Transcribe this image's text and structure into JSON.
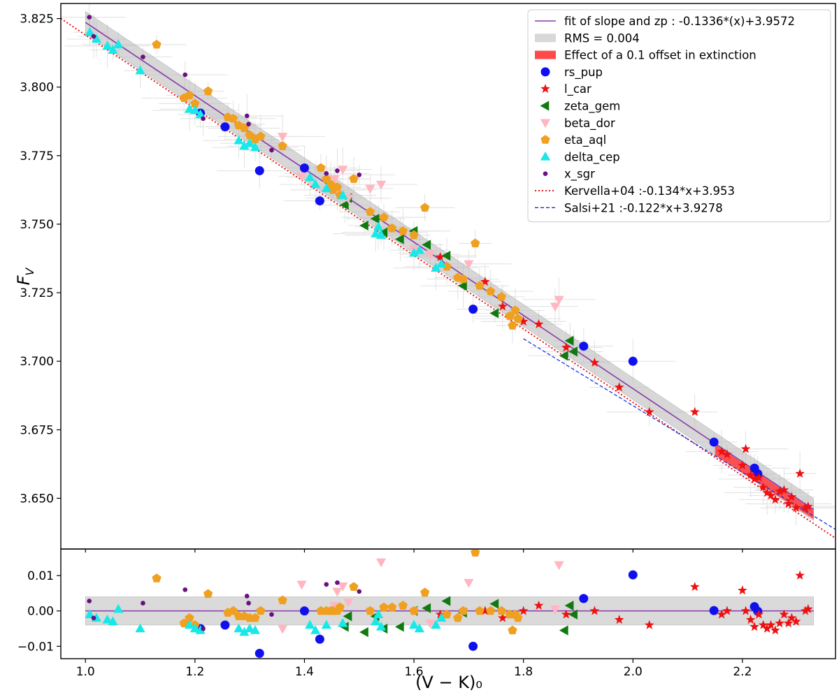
{
  "chart_data": [
    {
      "type": "scatter",
      "panel": "main",
      "ylabel_base": "F",
      "ylabel_sub": "V",
      "xlim": [
        0.955,
        2.37
      ],
      "ylim": [
        3.6315,
        3.8305
      ],
      "y_ticks": [
        {
          "value": 3.65,
          "label": "3.650"
        },
        {
          "value": 3.675,
          "label": "3.675"
        },
        {
          "value": 3.7,
          "label": "3.700"
        },
        {
          "value": 3.725,
          "label": "3.725"
        },
        {
          "value": 3.75,
          "label": "3.750"
        },
        {
          "value": 3.775,
          "label": "3.775"
        },
        {
          "value": 3.8,
          "label": "3.800"
        },
        {
          "value": 3.825,
          "label": "3.825"
        }
      ],
      "legend_position": "top-right",
      "fit": {
        "label": "fit of slope and zp : -0.1336*(x)+3.9572",
        "slope": -0.1336,
        "intercept": 3.9572,
        "x_range": [
          1.0,
          2.33
        ],
        "color": "#8b3aa8"
      },
      "rms_band": {
        "label": "RMS = 0.004",
        "width": 0.004,
        "x_range": [
          1.0,
          2.33
        ],
        "color": "#bdbdbd"
      },
      "extinction_band": {
        "label": "Effect of a 0.1 offset in extinction",
        "x_range": [
          2.15,
          2.33
        ],
        "color": "#ff4a4a"
      },
      "lines": [
        {
          "label": "Kervella+04 :-0.134*x+3.953",
          "slope": -0.134,
          "intercept": 3.953,
          "x_range": [
            0.955,
            2.37
          ],
          "color": "#ee1111",
          "style": "dotted"
        },
        {
          "label": "Salsi+21 :-0.122*x+3.9278",
          "slope": -0.122,
          "intercept": 3.9278,
          "x_range": [
            1.8,
            2.37
          ],
          "color": "#1530e0",
          "style": "dashed"
        }
      ],
      "series": [
        {
          "name": "rs_pup",
          "marker": "circle",
          "color": "#1010ee",
          "x": [
            1.21,
            1.255,
            1.318,
            1.4,
            1.428,
            1.708,
            1.91,
            2.0,
            2.148,
            2.222,
            2.228
          ],
          "y": [
            3.7905,
            3.7855,
            3.7695,
            3.7705,
            3.7585,
            3.719,
            3.7055,
            3.7,
            3.6705,
            3.661,
            3.659
          ]
        },
        {
          "name": "l_car",
          "marker": "star",
          "color": "#ee1111",
          "x": [
            1.648,
            1.73,
            1.762,
            1.8,
            1.828,
            1.878,
            1.93,
            1.975,
            2.03,
            2.113,
            2.162,
            2.172,
            2.2,
            2.206,
            2.215,
            2.222,
            2.23,
            2.238,
            2.245,
            2.252,
            2.26,
            2.268,
            2.276,
            2.284,
            2.29,
            2.298,
            2.305,
            2.315,
            2.32
          ],
          "y": [
            3.738,
            3.729,
            3.72,
            3.7145,
            3.7135,
            3.705,
            3.6995,
            3.6905,
            3.6815,
            3.6815,
            3.667,
            3.666,
            3.662,
            3.668,
            3.6585,
            3.657,
            3.6575,
            3.654,
            3.652,
            3.651,
            3.6495,
            3.6525,
            3.653,
            3.648,
            3.6505,
            3.6465,
            3.659,
            3.6465,
            3.647
          ]
        },
        {
          "name": "zeta_gem",
          "marker": "triangle-left",
          "color": "#0f7a0f",
          "x": [
            1.474,
            1.48,
            1.51,
            1.53,
            1.545,
            1.575,
            1.6,
            1.624,
            1.66,
            1.69,
            1.748,
            1.875,
            1.885,
            1.892
          ],
          "y": [
            3.757,
            3.7595,
            3.7495,
            3.752,
            3.747,
            3.7445,
            3.7475,
            3.7425,
            3.7385,
            3.7275,
            3.7175,
            3.702,
            3.7075,
            3.7035
          ]
        },
        {
          "name": "beta_dor",
          "marker": "triangle-down",
          "color": "#ffb6c1",
          "x": [
            1.36,
            1.395,
            1.455,
            1.46,
            1.47,
            1.48,
            1.52,
            1.54,
            1.6,
            1.63,
            1.7,
            1.858,
            1.865
          ],
          "y": [
            3.782,
            3.7675,
            3.7665,
            3.7615,
            3.77,
            3.7595,
            3.763,
            3.7645,
            3.741,
            3.739,
            3.7355,
            3.72,
            3.7225
          ]
        },
        {
          "name": "eta_aql",
          "marker": "pentagon",
          "color": "#f0a020",
          "x": [
            1.13,
            1.18,
            1.19,
            1.2,
            1.224,
            1.26,
            1.27,
            1.28,
            1.29,
            1.3,
            1.31,
            1.32,
            1.36,
            1.43,
            1.44,
            1.448,
            1.452,
            1.46,
            1.465,
            1.49,
            1.52,
            1.545,
            1.56,
            1.58,
            1.6,
            1.62,
            1.66,
            1.68,
            1.69,
            1.712,
            1.72,
            1.74,
            1.76,
            1.775,
            1.78,
            1.785,
            1.79
          ],
          "y": [
            3.8155,
            3.796,
            3.797,
            3.794,
            3.7985,
            3.789,
            3.7885,
            3.786,
            3.785,
            3.7825,
            3.781,
            3.782,
            3.7785,
            3.7705,
            3.7665,
            3.7645,
            3.7625,
            3.7635,
            3.7605,
            3.7665,
            3.7545,
            3.7525,
            3.7485,
            3.7475,
            3.746,
            3.756,
            3.7345,
            3.7305,
            3.73,
            3.743,
            3.7275,
            3.7255,
            3.7235,
            3.7165,
            3.713,
            3.7185,
            3.7155
          ]
        },
        {
          "name": "delta_cep",
          "marker": "triangle-up",
          "color": "#19e8e8",
          "x": [
            1.008,
            1.02,
            1.04,
            1.05,
            1.06,
            1.1,
            1.19,
            1.2,
            1.21,
            1.28,
            1.29,
            1.3,
            1.31,
            1.41,
            1.42,
            1.44,
            1.47,
            1.53,
            1.535,
            1.54,
            1.6,
            1.61,
            1.64,
            1.65
          ],
          "y": [
            3.82,
            3.8175,
            3.815,
            3.8135,
            3.8155,
            3.806,
            3.792,
            3.7915,
            3.79,
            3.7805,
            3.7785,
            3.7795,
            3.778,
            3.767,
            3.7645,
            3.763,
            3.7605,
            3.7465,
            3.749,
            3.746,
            3.7395,
            3.7405,
            3.734,
            3.7355
          ]
        },
        {
          "name": "x_sgr",
          "marker": "circle-small",
          "color": "#6a0f80",
          "x": [
            1.007,
            1.015,
            1.105,
            1.182,
            1.215,
            1.295,
            1.298,
            1.34,
            1.44,
            1.46,
            1.5
          ],
          "y": [
            3.8255,
            3.8185,
            3.811,
            3.8045,
            3.7885,
            3.7895,
            3.7865,
            3.777,
            3.7685,
            3.7695,
            3.768
          ]
        }
      ],
      "title": "",
      "xlabel": ""
    },
    {
      "type": "scatter",
      "panel": "residual",
      "xlabel": "(V − K)₀",
      "xlim": [
        0.955,
        2.37
      ],
      "ylim": [
        -0.0135,
        0.0175
      ],
      "x_ticks": [
        {
          "value": 1.0,
          "label": "1.0"
        },
        {
          "value": 1.2,
          "label": "1.2"
        },
        {
          "value": 1.4,
          "label": "1.4"
        },
        {
          "value": 1.6,
          "label": "1.6"
        },
        {
          "value": 1.8,
          "label": "1.8"
        },
        {
          "value": 2.0,
          "label": "2.0"
        },
        {
          "value": 2.2,
          "label": "2.2"
        }
      ],
      "y_ticks": [
        {
          "value": -0.01,
          "label": "−0.01"
        },
        {
          "value": 0.0,
          "label": "0.00"
        },
        {
          "value": 0.01,
          "label": "0.01"
        }
      ],
      "zero_line_color": "#8b3aa8",
      "rms_band": {
        "width": 0.004,
        "x_range": [
          1.0,
          2.33
        ]
      },
      "series": [
        {
          "name": "rs_pup",
          "marker": "circle",
          "color": "#1010ee",
          "x": [
            1.21,
            1.255,
            1.318,
            1.4,
            1.428,
            1.708,
            1.91,
            2.0,
            2.148,
            2.222,
            2.228
          ],
          "y": [
            -0.005,
            -0.004,
            -0.012,
            0.0,
            -0.008,
            -0.01,
            0.0035,
            0.0102,
            0.0001,
            0.0012,
            -0.0001
          ]
        },
        {
          "name": "l_car",
          "marker": "star",
          "color": "#ee1111",
          "x": [
            1.648,
            1.73,
            1.762,
            1.8,
            1.828,
            1.878,
            1.93,
            1.975,
            2.03,
            2.113,
            2.162,
            2.172,
            2.2,
            2.206,
            2.215,
            2.222,
            2.23,
            2.238,
            2.245,
            2.252,
            2.26,
            2.268,
            2.276,
            2.284,
            2.29,
            2.298,
            2.305,
            2.315,
            2.32
          ],
          "y": [
            -0.001,
            0.0,
            -0.002,
            0.0,
            0.0015,
            -0.001,
            0.0,
            -0.0025,
            -0.004,
            0.0068,
            -0.001,
            0.0,
            0.0058,
            0.0,
            -0.0025,
            -0.0045,
            -0.001,
            -0.004,
            -0.005,
            -0.004,
            -0.0055,
            -0.0035,
            -0.001,
            -0.0035,
            -0.002,
            -0.003,
            0.01,
            0.0,
            0.0005
          ]
        },
        {
          "name": "zeta_gem",
          "marker": "triangle-left",
          "color": "#0f7a0f",
          "x": [
            1.474,
            1.48,
            1.51,
            1.53,
            1.545,
            1.575,
            1.6,
            1.624,
            1.66,
            1.69,
            1.748,
            1.875,
            1.885,
            1.892
          ],
          "y": [
            -0.0045,
            -0.0015,
            -0.006,
            -0.0015,
            -0.005,
            -0.0045,
            0.0,
            0.0008,
            0.0028,
            -0.0005,
            0.002,
            -0.0055,
            0.0015,
            -0.001
          ]
        },
        {
          "name": "beta_dor",
          "marker": "triangle-down",
          "color": "#ffb6c1",
          "x": [
            1.36,
            1.395,
            1.455,
            1.46,
            1.47,
            1.48,
            1.52,
            1.54,
            1.6,
            1.63,
            1.7,
            1.858,
            1.865
          ],
          "y": [
            -0.005,
            0.0075,
            0.0015,
            0.0055,
            0.007,
            0.0025,
            0.0,
            0.0138,
            0.0,
            -0.0035,
            0.008,
            0.0005,
            0.013
          ]
        },
        {
          "name": "eta_aql",
          "marker": "pentagon",
          "color": "#f0a020",
          "x": [
            1.13,
            1.18,
            1.19,
            1.2,
            1.224,
            1.26,
            1.27,
            1.28,
            1.29,
            1.3,
            1.31,
            1.32,
            1.36,
            1.43,
            1.44,
            1.448,
            1.452,
            1.46,
            1.465,
            1.49,
            1.52,
            1.545,
            1.56,
            1.58,
            1.6,
            1.62,
            1.66,
            1.68,
            1.69,
            1.712,
            1.72,
            1.74,
            1.76,
            1.775,
            1.78,
            1.785,
            1.79
          ],
          "y": [
            0.0092,
            -0.0035,
            -0.002,
            -0.004,
            0.0048,
            -0.0005,
            0.0,
            -0.0015,
            -0.0015,
            -0.002,
            -0.002,
            0.0,
            0.003,
            0.0,
            0.0,
            0.0,
            0.0,
            0.0,
            0.001,
            0.0068,
            0.0,
            0.001,
            0.001,
            0.0015,
            0.0,
            0.0052,
            -0.001,
            -0.002,
            0.0,
            0.0165,
            0.0,
            0.0,
            0.0,
            -0.001,
            -0.0055,
            -0.001,
            -0.002
          ]
        },
        {
          "name": "delta_cep",
          "marker": "triangle-up",
          "color": "#19e8e8",
          "x": [
            1.008,
            1.02,
            1.04,
            1.05,
            1.06,
            1.1,
            1.19,
            1.2,
            1.21,
            1.28,
            1.29,
            1.3,
            1.31,
            1.41,
            1.42,
            1.44,
            1.47,
            1.53,
            1.535,
            1.54,
            1.6,
            1.61,
            1.64,
            1.65
          ],
          "y": [
            -0.001,
            -0.002,
            -0.0025,
            -0.003,
            0.0005,
            -0.005,
            -0.004,
            -0.005,
            -0.0055,
            -0.005,
            -0.006,
            -0.005,
            -0.0055,
            -0.004,
            -0.0055,
            -0.004,
            -0.0035,
            -0.003,
            -0.001,
            -0.0045,
            -0.004,
            -0.005,
            -0.004,
            -0.002
          ]
        },
        {
          "name": "x_sgr",
          "marker": "circle-small",
          "color": "#6a0f80",
          "x": [
            1.007,
            1.015,
            1.105,
            1.182,
            1.215,
            1.295,
            1.298,
            1.34,
            1.44,
            1.46,
            1.5
          ],
          "y": [
            0.0028,
            -0.002,
            0.0022,
            0.006,
            -0.005,
            0.0042,
            0.0022,
            -0.001,
            0.0075,
            0.008,
            0.0055
          ]
        }
      ],
      "title": "",
      "ylabel": ""
    }
  ]
}
